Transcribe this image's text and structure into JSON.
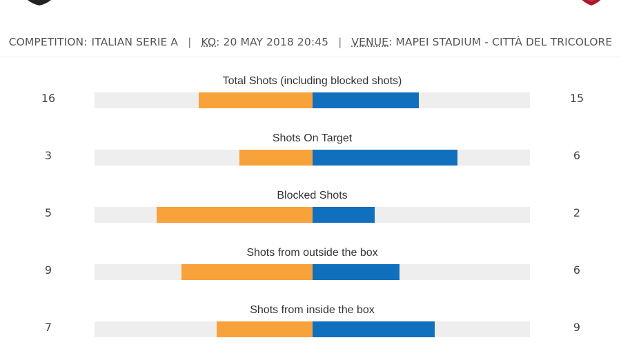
{
  "colors": {
    "home": "#f7a23b",
    "away": "#1170bd",
    "track": "#eeeeee"
  },
  "crests": {
    "home": "home-team-crest-icon",
    "away": "away-team-crest-icon"
  },
  "info": {
    "competition_key": "COMPETITION:",
    "competition_value": "ITALIAN SERIE A",
    "ko_key": "KO",
    "ko_value": "20 MAY 2018 20:45",
    "venue_key": "VENUE",
    "venue_value": "MAPEI STADIUM - CITTÀ DEL TRICOLORE"
  },
  "stats": [
    {
      "label": "Total Shots (including blocked shots)",
      "home": 16,
      "away": 15,
      "home_fill": 0.26,
      "away_fill": 0.245
    },
    {
      "label": "Shots On Target",
      "home": 3,
      "away": 6,
      "home_fill": 0.167,
      "away_fill": 0.333
    },
    {
      "label": "Blocked Shots",
      "home": 5,
      "away": 2,
      "home_fill": 0.357,
      "away_fill": 0.143
    },
    {
      "label": "Shots from outside the box",
      "home": 9,
      "away": 6,
      "home_fill": 0.3,
      "away_fill": 0.2
    },
    {
      "label": "Shots from inside the box",
      "home": 7,
      "away": 9,
      "home_fill": 0.219,
      "away_fill": 0.281
    }
  ]
}
